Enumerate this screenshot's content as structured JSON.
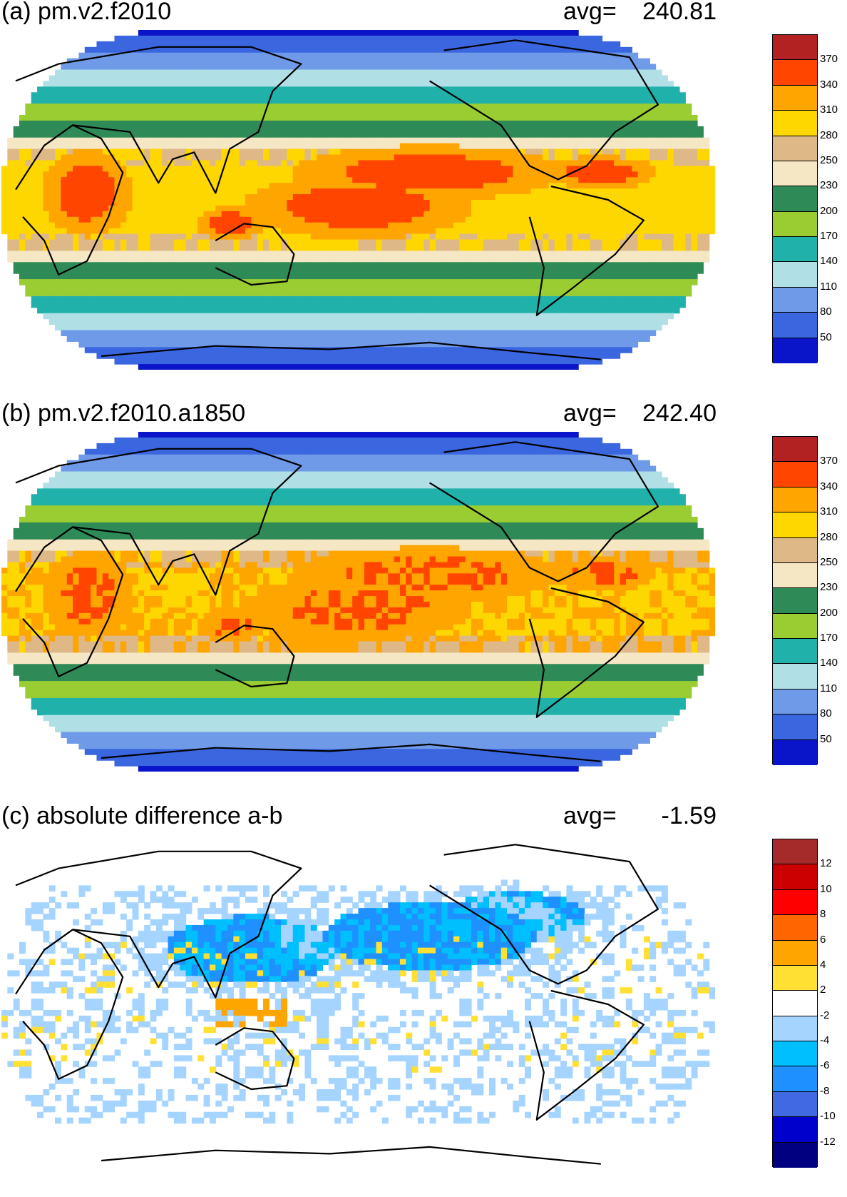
{
  "panels": [
    {
      "id": "a",
      "title": "(a) pm.v2.f2010",
      "avg_label": "avg=",
      "avg_value": "240.81",
      "colorbar": {
        "colors": [
          "#0a14c8",
          "#3a66e0",
          "#6f9ae8",
          "#b0e0e6",
          "#20b2aa",
          "#9acd32",
          "#2e8b57",
          "#f5e6c4",
          "#deb887",
          "#ffd700",
          "#ffa500",
          "#ff4500",
          "#b22222"
        ],
        "labels": [
          "50",
          "80",
          "110",
          "140",
          "170",
          "200",
          "230",
          "250",
          "280",
          "310",
          "340",
          "370"
        ]
      }
    },
    {
      "id": "b",
      "title": "(b) pm.v2.f2010.a1850",
      "avg_label": "avg=",
      "avg_value": "242.40",
      "colorbar": {
        "colors": [
          "#0a14c8",
          "#3a66e0",
          "#6f9ae8",
          "#b0e0e6",
          "#20b2aa",
          "#9acd32",
          "#2e8b57",
          "#f5e6c4",
          "#deb887",
          "#ffd700",
          "#ffa500",
          "#ff4500",
          "#b22222"
        ],
        "labels": [
          "50",
          "80",
          "110",
          "140",
          "170",
          "200",
          "230",
          "250",
          "280",
          "310",
          "340",
          "370"
        ]
      }
    },
    {
      "id": "c",
      "title": "(c) absolute difference a-b",
      "avg_label": "avg=",
      "avg_value": "-1.59",
      "colorbar": {
        "colors": [
          "#000080",
          "#0000cd",
          "#4169e1",
          "#1e90ff",
          "#00bfff",
          "#a4d4ff",
          "#ffffff",
          "#ffe033",
          "#ffa500",
          "#ff6600",
          "#ff0000",
          "#cc0000",
          "#a52a2a"
        ],
        "labels": [
          "-12",
          "-10",
          "-8",
          "-6",
          "-4",
          "-2",
          "2",
          "4",
          "6",
          "8",
          "10",
          "12"
        ]
      }
    }
  ]
}
